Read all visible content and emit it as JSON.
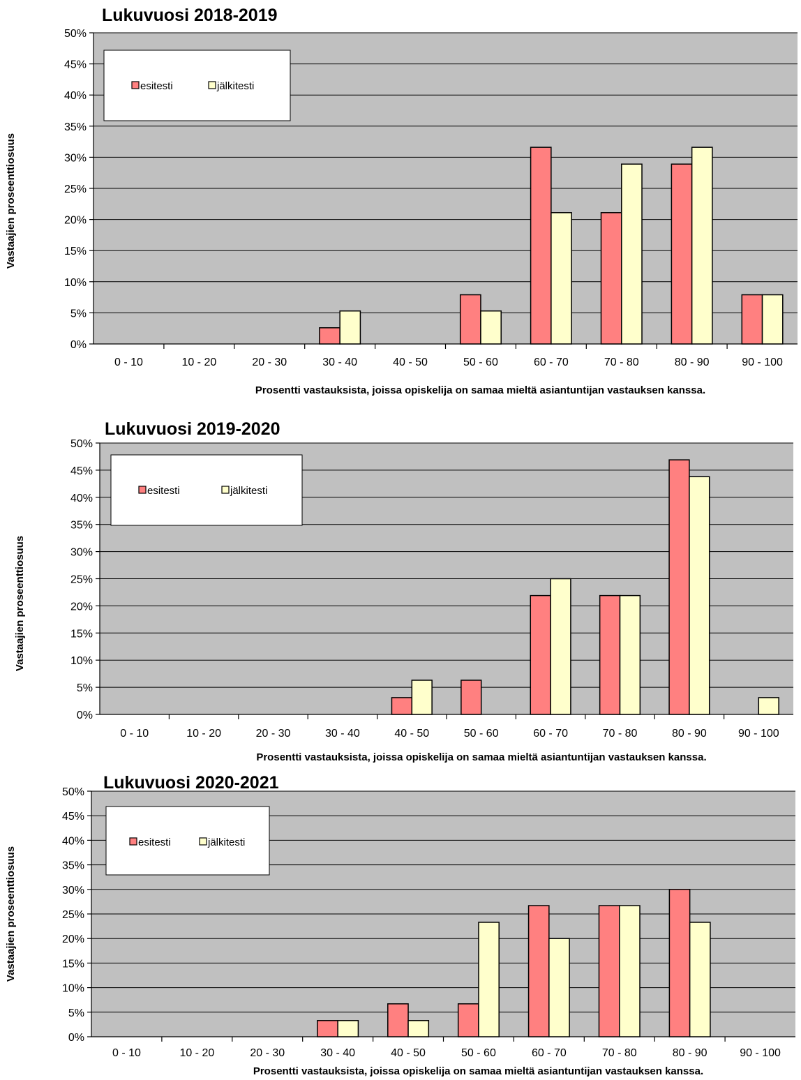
{
  "chart_data": [
    {
      "type": "bar",
      "title": "Lukuvuosi  2018-2019",
      "xlabel": "Prosentti vastauksista, joissa opiskelija on samaa mieltä asiantuntijan vastauksen kanssa.",
      "ylabel": "Vastaajien proseenttiosuus",
      "categories": [
        "0 - 10",
        "10 - 20",
        "20 - 30",
        "30 - 40",
        "40 - 50",
        "50 - 60",
        "60 - 70",
        "70 - 80",
        "80 - 90",
        "90 - 100"
      ],
      "series": [
        {
          "name": "esitesti",
          "color": "#ff8080",
          "values": [
            0,
            0,
            0,
            2.6,
            0,
            7.9,
            31.6,
            21.1,
            28.9,
            7.9
          ]
        },
        {
          "name": "jälkitesti",
          "color": "#ffffcc",
          "values": [
            0,
            0,
            0,
            5.3,
            0,
            5.3,
            21.1,
            28.9,
            31.6,
            7.9
          ]
        }
      ],
      "ylim": [
        0,
        50
      ],
      "yticks": [
        "0%",
        "5%",
        "10%",
        "15%",
        "20%",
        "25%",
        "30%",
        "35%",
        "40%",
        "45%",
        "50%"
      ],
      "grid": true,
      "legend_position": "top-left"
    },
    {
      "type": "bar",
      "title": "Lukuvuosi 2019-2020",
      "xlabel": "Prosentti vastauksista, joissa opiskelija on samaa mieltä asiantuntijan vastauksen kanssa.",
      "ylabel": "Vastaajien proseenttiosuus",
      "categories": [
        "0 - 10",
        "10 - 20",
        "20 - 30",
        "30 - 40",
        "40 - 50",
        "50 - 60",
        "60 - 70",
        "70 - 80",
        "80 - 90",
        "90 - 100"
      ],
      "series": [
        {
          "name": "esitesti",
          "color": "#ff8080",
          "values": [
            0,
            0,
            0,
            0,
            3.1,
            6.3,
            21.9,
            21.9,
            46.9,
            0
          ]
        },
        {
          "name": "jälkitesti",
          "color": "#ffffcc",
          "values": [
            0,
            0,
            0,
            0,
            6.3,
            0,
            25.0,
            21.9,
            43.8,
            3.1
          ]
        }
      ],
      "ylim": [
        0,
        50
      ],
      "yticks": [
        "0%",
        "5%",
        "10%",
        "15%",
        "20%",
        "25%",
        "30%",
        "35%",
        "40%",
        "45%",
        "50%"
      ],
      "grid": true,
      "legend_position": "top-left"
    },
    {
      "type": "bar",
      "title": "Lukuvuosi 2020-2021",
      "xlabel": "Prosentti vastauksista, joissa opiskelija on samaa mieltä asiantuntijan vastauksen kanssa.",
      "ylabel": "Vastaajien proseenttiosuus",
      "categories": [
        "0 - 10",
        "10 - 20",
        "20 - 30",
        "30 - 40",
        "40 - 50",
        "50 - 60",
        "60 - 70",
        "70 - 80",
        "80 - 90",
        "90 - 100"
      ],
      "series": [
        {
          "name": "esitesti",
          "color": "#ff8080",
          "values": [
            0,
            0,
            0,
            3.3,
            6.7,
            6.7,
            26.7,
            26.7,
            30.0,
            0
          ]
        },
        {
          "name": "jälkitesti",
          "color": "#ffffcc",
          "values": [
            0,
            0,
            0,
            3.3,
            3.3,
            23.3,
            20.0,
            26.7,
            23.3,
            0
          ]
        }
      ],
      "ylim": [
        0,
        50
      ],
      "yticks": [
        "0%",
        "5%",
        "10%",
        "15%",
        "20%",
        "25%",
        "30%",
        "35%",
        "40%",
        "45%",
        "50%"
      ],
      "grid": true,
      "legend_position": "top-left"
    }
  ]
}
